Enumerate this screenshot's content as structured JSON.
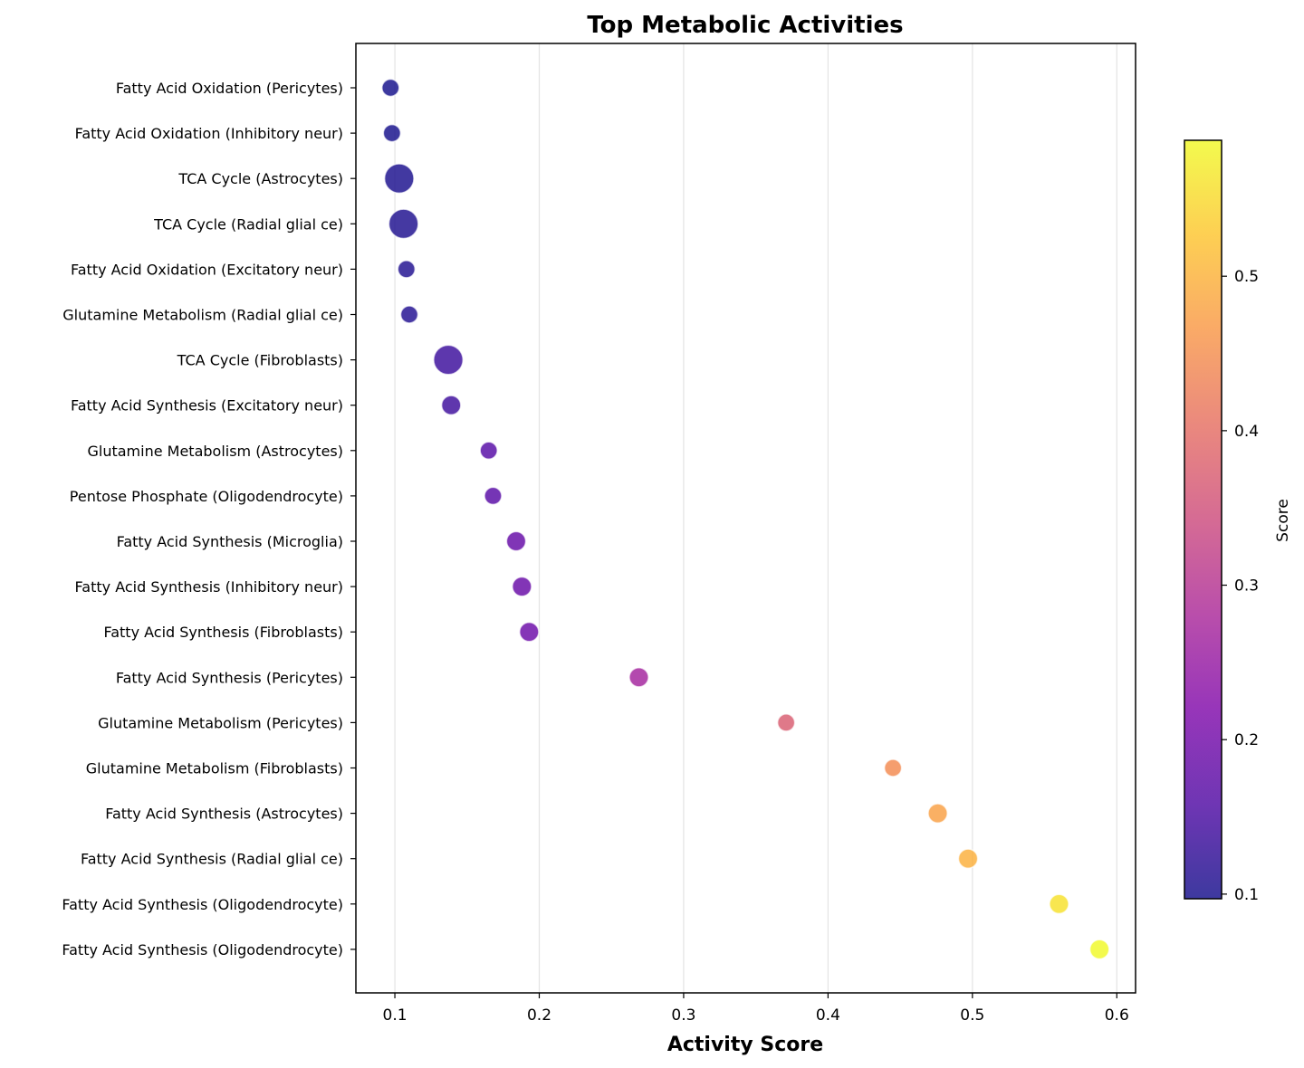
{
  "chart_data": {
    "type": "scatter",
    "title": "Top Metabolic Activities",
    "xlabel": "Activity Score",
    "ylabel": "",
    "xlim": [
      0.073,
      0.613
    ],
    "xticks": [
      "0.1",
      "0.2",
      "0.3",
      "0.4",
      "0.5",
      "0.6"
    ],
    "grid": "x-axis vertical lines",
    "colormap": "plasma",
    "colorbar": {
      "label": "Score",
      "range": [
        0.097,
        0.588
      ],
      "ticks": [
        "0.1",
        "0.2",
        "0.3",
        "0.4",
        "0.5"
      ]
    },
    "points": [
      {
        "label": "Fatty Acid Oxidation (Pericytes)",
        "x": 0.097,
        "size": 0.6
      },
      {
        "label": "Fatty Acid Oxidation (Inhibitory neur)",
        "x": 0.098,
        "size": 0.6
      },
      {
        "label": "TCA Cycle (Astrocytes)",
        "x": 0.103,
        "size": 1.75
      },
      {
        "label": "TCA Cycle (Radial glial ce)",
        "x": 0.106,
        "size": 1.75
      },
      {
        "label": "Fatty Acid Oxidation (Excitatory neur)",
        "x": 0.108,
        "size": 0.6
      },
      {
        "label": "Glutamine Metabolism (Radial glial ce)",
        "x": 0.11,
        "size": 0.6
      },
      {
        "label": "TCA Cycle (Fibroblasts)",
        "x": 0.137,
        "size": 1.75
      },
      {
        "label": "Fatty Acid Synthesis (Excitatory neur)",
        "x": 0.139,
        "size": 0.75
      },
      {
        "label": "Glutamine Metabolism (Astrocytes)",
        "x": 0.165,
        "size": 0.6
      },
      {
        "label": "Pentose Phosphate (Oligodendrocyte)",
        "x": 0.168,
        "size": 0.6
      },
      {
        "label": "Fatty Acid Synthesis (Microglia)",
        "x": 0.184,
        "size": 0.75
      },
      {
        "label": "Fatty Acid Synthesis (Inhibitory neur)",
        "x": 0.188,
        "size": 0.75
      },
      {
        "label": "Fatty Acid Synthesis (Fibroblasts)",
        "x": 0.193,
        "size": 0.75
      },
      {
        "label": "Fatty Acid Synthesis (Pericytes)",
        "x": 0.269,
        "size": 0.75
      },
      {
        "label": "Glutamine Metabolism (Pericytes)",
        "x": 0.371,
        "size": 0.6
      },
      {
        "label": "Glutamine Metabolism (Fibroblasts)",
        "x": 0.445,
        "size": 0.6
      },
      {
        "label": "Fatty Acid Synthesis (Astrocytes)",
        "x": 0.476,
        "size": 0.75
      },
      {
        "label": "Fatty Acid Synthesis (Radial glial ce)",
        "x": 0.497,
        "size": 0.75
      },
      {
        "label": "Fatty Acid Synthesis (Oligodendrocyte)",
        "x": 0.56,
        "size": 0.75
      },
      {
        "label": "Fatty Acid Synthesis (Oligodendrocyte)",
        "x": 0.588,
        "size": 0.75
      }
    ]
  }
}
